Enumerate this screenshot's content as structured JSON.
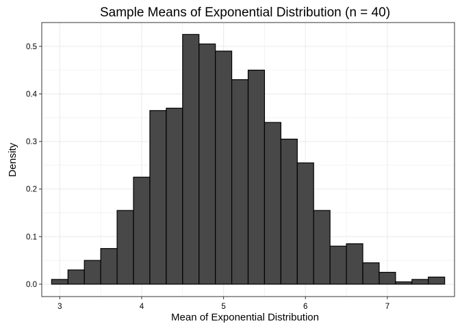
{
  "chart_data": {
    "type": "bar",
    "subtype": "histogram",
    "title": "Sample Means of Exponential Distribution (n = 40)",
    "xlabel": "Mean of Exponential Distribution",
    "ylabel": "Density",
    "xlim": [
      2.78,
      7.82
    ],
    "ylim": [
      -0.026,
      0.55
    ],
    "x_ticks": [
      3,
      4,
      5,
      6,
      7
    ],
    "y_ticks": [
      0.0,
      0.1,
      0.2,
      0.3,
      0.4,
      0.5
    ],
    "y_tick_labels": [
      "0.0",
      "0.1",
      "0.2",
      "0.3",
      "0.4",
      "0.5"
    ],
    "x_tick_labels": [
      "3",
      "4",
      "5",
      "6",
      "7"
    ],
    "bin_width": 0.2,
    "bin_edges": [
      2.9,
      3.1,
      3.3,
      3.5,
      3.7,
      3.9,
      4.1,
      4.3,
      4.5,
      4.7,
      4.9,
      5.1,
      5.3,
      5.5,
      5.7,
      5.9,
      6.1,
      6.3,
      6.5,
      6.7,
      6.9,
      7.1,
      7.3,
      7.5,
      7.7
    ],
    "values": [
      0.01,
      0.03,
      0.05,
      0.075,
      0.155,
      0.225,
      0.365,
      0.37,
      0.525,
      0.505,
      0.49,
      0.43,
      0.45,
      0.34,
      0.305,
      0.255,
      0.155,
      0.08,
      0.085,
      0.045,
      0.025,
      0.005,
      0.01,
      0.015
    ],
    "grid": true,
    "colors": {
      "bar_fill": "#484848",
      "bar_stroke": "#000000",
      "grid": "#ebebeb",
      "panel_border": "#333333"
    }
  }
}
